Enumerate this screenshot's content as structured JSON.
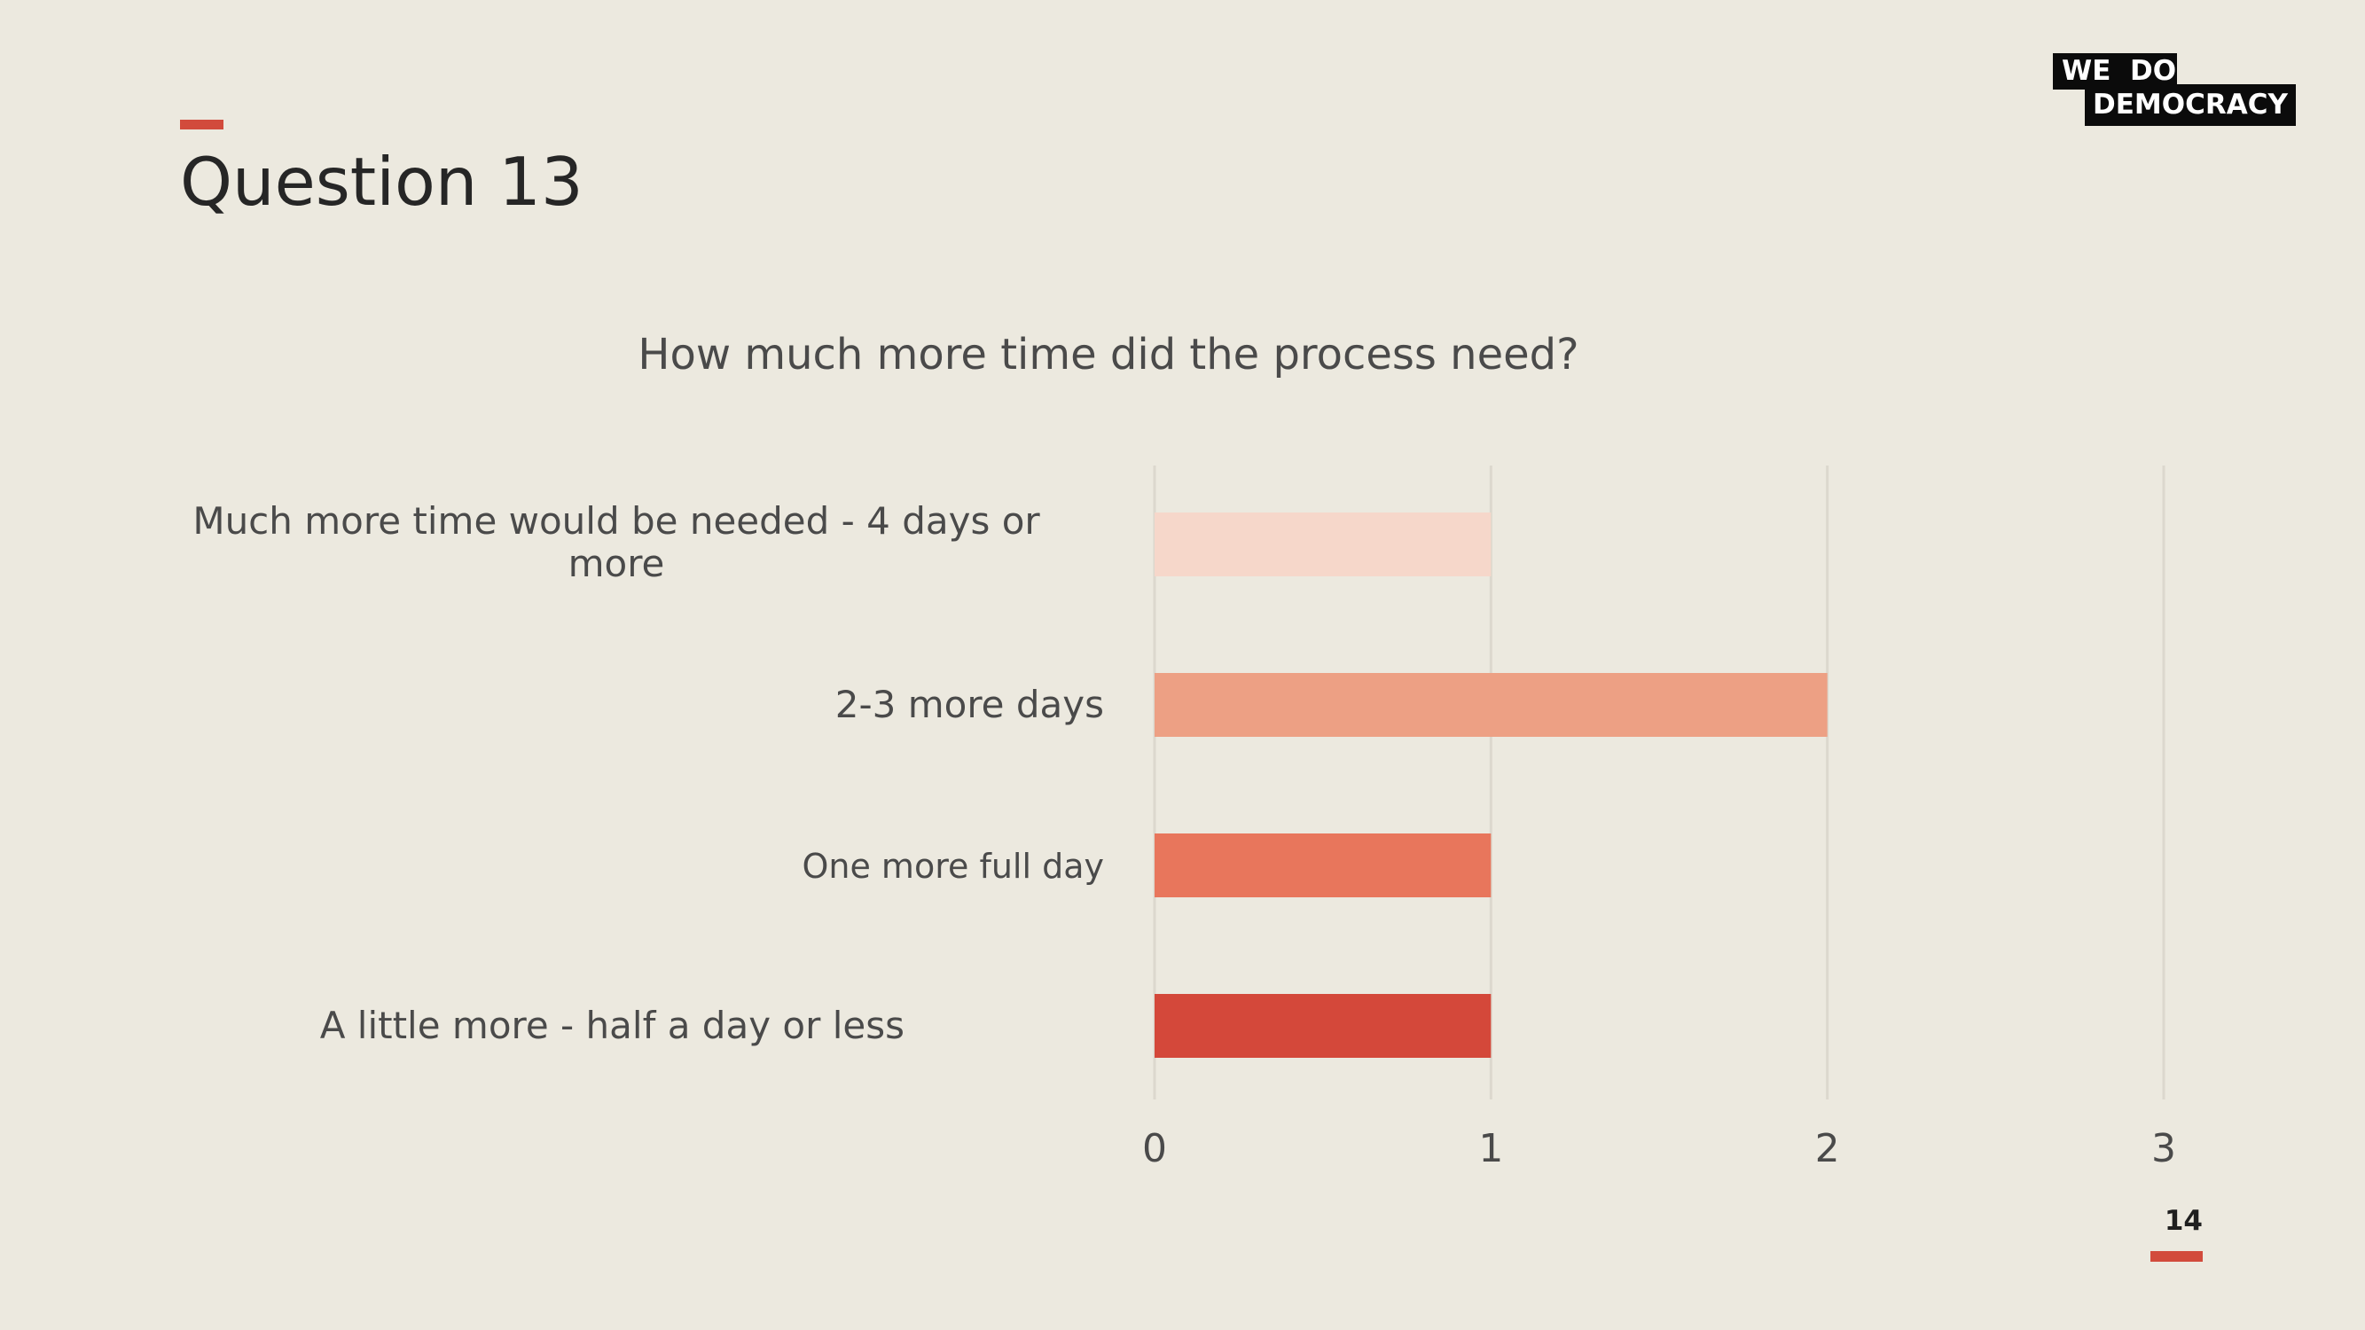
{
  "slide": {
    "title": "Question 13",
    "page_number": "14",
    "accent_color": "#D24B3C",
    "background_color": "#ECE9DF"
  },
  "logo": {
    "line1": "WE  DO",
    "line2": "DEMOCRACY"
  },
  "chart_data": {
    "type": "bar",
    "orientation": "horizontal",
    "title": "How much more time did the process need?",
    "categories": [
      "Much more time would be needed - 4 days or more",
      "2-3 more days",
      "One more full day",
      "A little more - half a day or less"
    ],
    "values": [
      1,
      2,
      1,
      1
    ],
    "colors": [
      "#F6D7CA",
      "#EDA084",
      "#E8765C",
      "#D4483A"
    ],
    "xlim": [
      0,
      3
    ],
    "xticks": [
      "0",
      "1",
      "2",
      "3"
    ],
    "grid": true,
    "legend": "none"
  }
}
